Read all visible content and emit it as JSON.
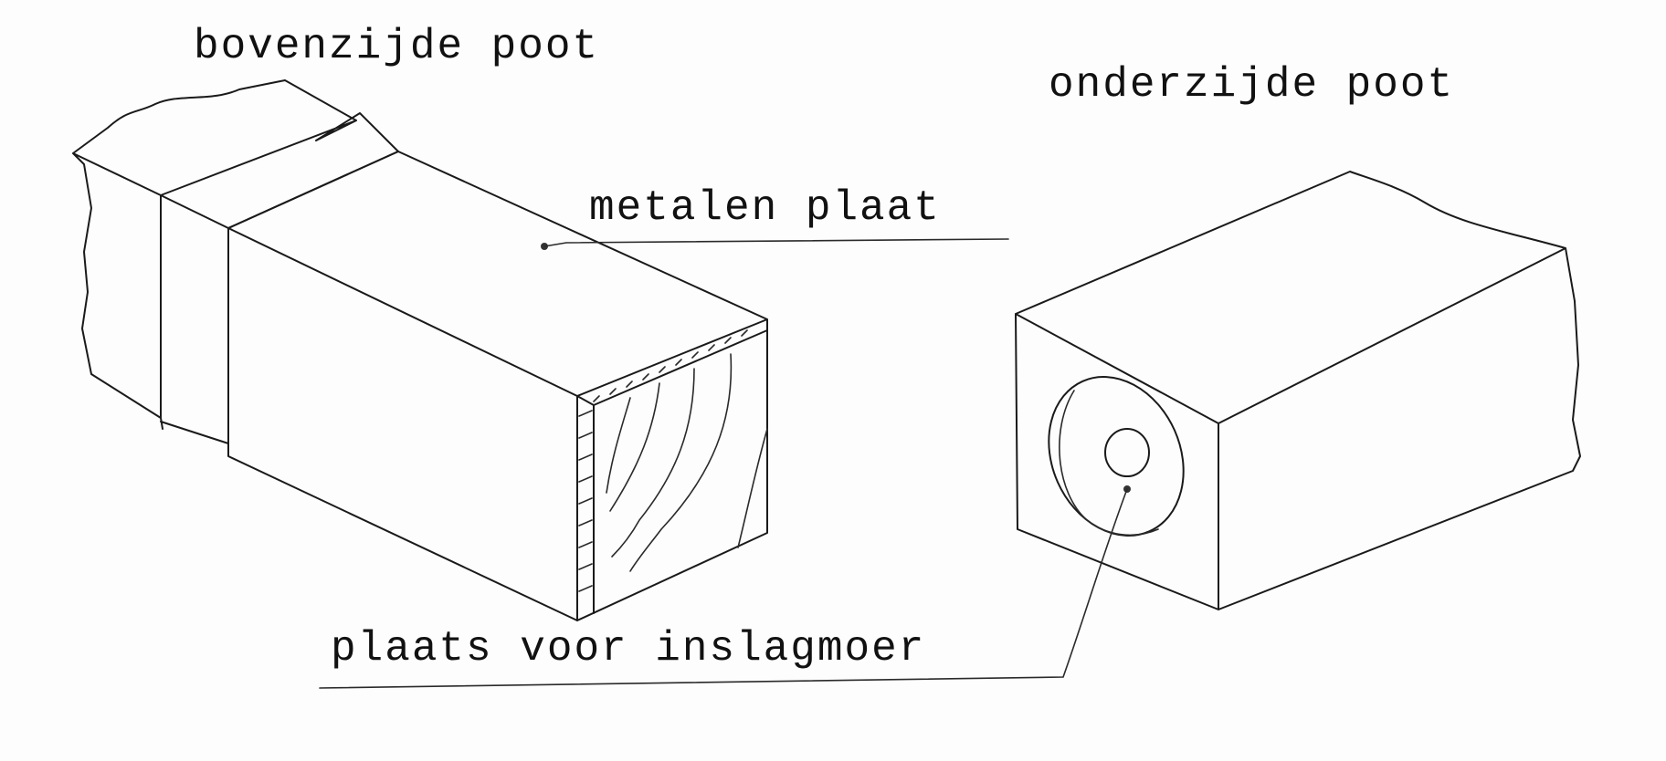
{
  "labels": {
    "top_leg": "bovenzijde poot",
    "bottom_leg": "onderzijde poot",
    "metal_plate": "metalen plaat",
    "insert_nut_location": "plaats voor inslagmoer"
  },
  "colors": {
    "paper": "#fdfdfd",
    "ink": "#1a1a1a"
  }
}
